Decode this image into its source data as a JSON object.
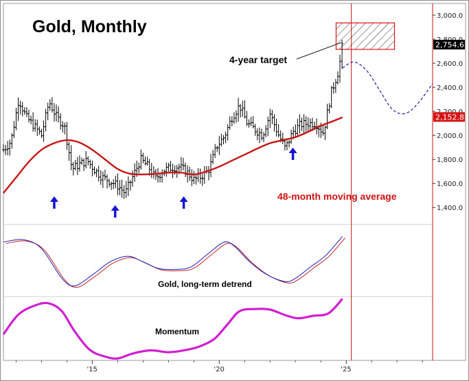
{
  "chart_data": {
    "type": "line",
    "title": "Gold, Monthly",
    "x_tick_labels": [
      "'15",
      "'20",
      "'25"
    ],
    "x_tick_years": [
      2015,
      2020,
      2025
    ],
    "x_range": [
      2011.5,
      2028.4
    ],
    "y_tick_labels": [
      "1,400.0",
      "1,600.0",
      "1,800.0",
      "2,000.0",
      "2,200.0",
      "2,400.0",
      "2,600.0",
      "2,800.0",
      "3,000.0"
    ],
    "y_ticks": [
      1400,
      1600,
      1800,
      2000,
      2200,
      2400,
      2600,
      2800,
      3000
    ],
    "ylim": [
      1270,
      3080
    ],
    "last_price_label": "2,754.6",
    "last_price": 2754.6,
    "ma_last_label": "2,152.8",
    "ma_last": 2152.8,
    "annotations": {
      "target": "4-year target",
      "ma": "48-month moving average",
      "detrend": "Gold, long-term detrend",
      "momentum": "Momentum"
    },
    "target_box": {
      "x": [
        2024.6,
        2026.9
      ],
      "y": [
        2715,
        2935
      ]
    },
    "price_series": {
      "x": [
        2011.5,
        2011.8,
        2012.1,
        2012.4,
        2012.7,
        2013.0,
        2013.3,
        2013.6,
        2013.9,
        2014.2,
        2014.5,
        2014.8,
        2015.1,
        2015.4,
        2015.7,
        2016.0,
        2016.3,
        2016.6,
        2016.9,
        2017.2,
        2017.5,
        2017.8,
        2018.1,
        2018.4,
        2018.7,
        2019.0,
        2019.3,
        2019.6,
        2019.9,
        2020.2,
        2020.5,
        2020.8,
        2021.1,
        2021.4,
        2021.7,
        2022.0,
        2022.3,
        2022.6,
        2022.9,
        2023.2,
        2023.5,
        2023.8,
        2024.1,
        2024.4,
        2024.7,
        2024.85
      ],
      "y": [
        1880,
        1950,
        2300,
        2150,
        2080,
        2000,
        2280,
        2150,
        2080,
        1720,
        1760,
        1790,
        1710,
        1650,
        1620,
        1580,
        1520,
        1660,
        1800,
        1740,
        1640,
        1710,
        1730,
        1740,
        1700,
        1630,
        1660,
        1720,
        1910,
        1990,
        2150,
        2250,
        2100,
        2050,
        2000,
        2180,
        2020,
        1890,
        2030,
        2090,
        2100,
        2100,
        2020,
        2350,
        2540,
        2755
      ]
    },
    "ma_series": {
      "x": [
        2011.5,
        2012.0,
        2012.5,
        2013.0,
        2013.5,
        2014.0,
        2014.5,
        2015.0,
        2015.5,
        2016.0,
        2016.5,
        2017.0,
        2017.5,
        2018.0,
        2018.5,
        2019.0,
        2019.5,
        2020.0,
        2020.5,
        2021.0,
        2021.5,
        2022.0,
        2022.5,
        2023.0,
        2023.5,
        2024.0,
        2024.5,
        2024.85
      ],
      "y": [
        1520,
        1650,
        1780,
        1880,
        1935,
        1960,
        1940,
        1880,
        1800,
        1720,
        1680,
        1675,
        1680,
        1690,
        1690,
        1675,
        1700,
        1740,
        1790,
        1840,
        1890,
        1935,
        1960,
        1985,
        2030,
        2080,
        2120,
        2150
      ]
    },
    "projection_series": {
      "x": [
        2024.85,
        2025.3,
        2025.8,
        2026.3,
        2026.8,
        2027.3,
        2027.8,
        2028.4
      ],
      "y": [
        2560,
        2610,
        2540,
        2380,
        2220,
        2180,
        2260,
        2430
      ]
    },
    "low_markers_x": [
      2013.5,
      2015.9,
      2018.6,
      2022.9
    ],
    "detrend_series": {
      "x": [
        2011.5,
        2012.3,
        2013.0,
        2013.8,
        2014.3,
        2015.0,
        2015.7,
        2016.4,
        2017.0,
        2017.6,
        2018.3,
        2018.9,
        2019.6,
        2020.2,
        2020.6,
        2021.2,
        2021.9,
        2022.6,
        2023.0,
        2023.6,
        2024.2,
        2024.85
      ],
      "y": [
        0.55,
        0.62,
        0.35,
        -0.55,
        -0.78,
        -0.45,
        -0.05,
        0.12,
        -0.05,
        -0.25,
        -0.28,
        -0.2,
        0.22,
        0.55,
        0.42,
        -0.05,
        -0.45,
        -0.65,
        -0.55,
        -0.2,
        0.15,
        0.72
      ]
    },
    "momentum_series": {
      "x": [
        2011.5,
        2012.1,
        2012.8,
        2013.3,
        2013.8,
        2014.3,
        2014.9,
        2015.5,
        2016.0,
        2016.6,
        2017.3,
        2018.0,
        2018.6,
        2019.2,
        2019.8,
        2020.3,
        2020.8,
        2021.4,
        2022.0,
        2022.6,
        2023.1,
        2023.7,
        2024.3,
        2024.85
      ],
      "y": [
        -0.2,
        0.45,
        0.75,
        0.8,
        0.55,
        -0.1,
        -0.7,
        -0.92,
        -0.98,
        -0.82,
        -0.72,
        -0.78,
        -0.72,
        -0.6,
        -0.35,
        0.1,
        0.55,
        0.62,
        0.6,
        0.42,
        0.32,
        0.4,
        0.48,
        0.95
      ]
    }
  }
}
